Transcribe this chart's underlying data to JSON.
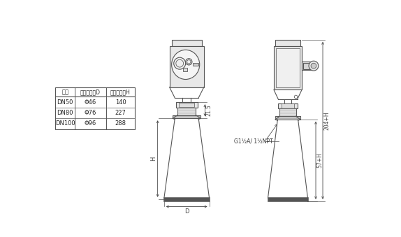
{
  "bg_color": "#ffffff",
  "line_color": "#555555",
  "gray_fill": "#e8e8e8",
  "dark_fill": "#d0d0d0",
  "table_header": "法兰",
  "table_col2": "喇叭口直径D",
  "table_col3": "喇叭口高度H",
  "table_rows": [
    [
      "DN50",
      "Φ46",
      "140"
    ],
    [
      "DN80",
      "Φ76",
      "227"
    ],
    [
      "DN100",
      "Φ96",
      "288"
    ]
  ],
  "dim_21_5": "21.5",
  "dim_H": "H",
  "dim_D": "D",
  "dim_204H": "204+H",
  "dim_57H": "57+H",
  "label_G": "G1½A/ 1½NPT"
}
